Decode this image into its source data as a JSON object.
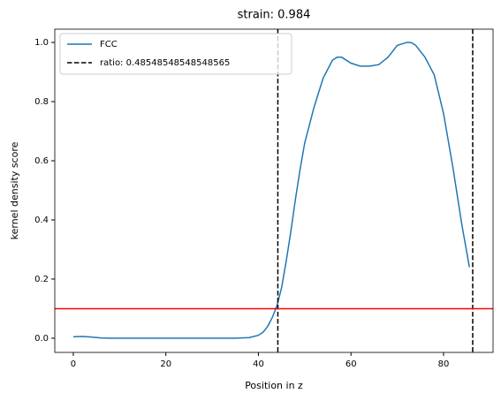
{
  "chart_data": {
    "type": "line",
    "title": "strain: 0.984",
    "x_label": "Position in z",
    "y_label": "kernel density score",
    "x": [
      0,
      2,
      4,
      6,
      8,
      10,
      15,
      20,
      25,
      30,
      35,
      38,
      40,
      41,
      42,
      43,
      44,
      45,
      46,
      47,
      48,
      49,
      50,
      52,
      54,
      56,
      57,
      58,
      60,
      62,
      64,
      66,
      68,
      70,
      72,
      73,
      74,
      76,
      78,
      80,
      82,
      84,
      85.6
    ],
    "series": [
      {
        "name": "FCC",
        "color": "#1f77b4",
        "values": [
          0.005,
          0.006,
          0.004,
          0.001,
          0,
          0,
          0,
          0,
          0,
          0,
          0,
          0.002,
          0.01,
          0.02,
          0.04,
          0.07,
          0.11,
          0.17,
          0.26,
          0.36,
          0.47,
          0.57,
          0.66,
          0.78,
          0.88,
          0.94,
          0.95,
          0.95,
          0.93,
          0.92,
          0.92,
          0.925,
          0.95,
          0.99,
          1.0,
          1.0,
          0.99,
          0.95,
          0.89,
          0.76,
          0.58,
          0.38,
          0.24
        ]
      }
    ],
    "vlines": {
      "name": "ratio: 0.48548548548548565",
      "color": "#000000",
      "values": [
        44.2,
        86.3
      ]
    },
    "hline": {
      "color": "#ff0000",
      "value": 0.1
    },
    "xlim": [
      -4.0,
      90.7
    ],
    "ylim": [
      -0.048,
      1.045
    ],
    "xticks": [
      0,
      20,
      40,
      60,
      80
    ],
    "yticks": [
      {
        "value": 0,
        "label": "0.0"
      },
      0.2,
      0.4,
      0.6,
      0.8,
      {
        "value": 1,
        "label": "1.0"
      }
    ],
    "legend": "upper left"
  }
}
